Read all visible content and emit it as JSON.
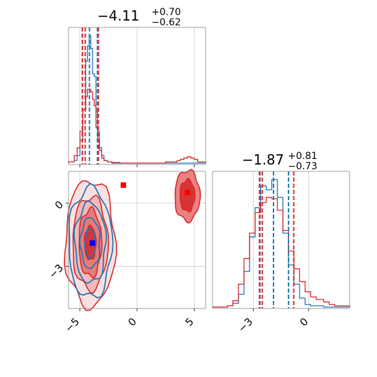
{
  "chart_data": {
    "type": "corner",
    "grid": true,
    "colors": {
      "blue": "#1f77b4",
      "red": "#d62728",
      "blue_marker": "#0000ff",
      "red_marker": "#ff0000",
      "pink_scatter": "#f7b6d2"
    },
    "panels": [
      {
        "id": "hist_param1",
        "kind": "histogram",
        "title": {
          "main": "−4.11",
          "sup": "+0.70",
          "sub": "−0.62"
        },
        "xlim": [
          -6,
          6
        ],
        "x_tick_values": [
          -5,
          0,
          5
        ],
        "quantiles_blue": [
          -4.73,
          -4.11,
          -3.41
        ],
        "quantiles_red": [
          -4.85,
          -4.6,
          -3.45
        ],
        "series": [
          {
            "color": "blue",
            "x": [
              -6.0,
              -5.5,
              -5.25,
              -5.0,
              -4.75,
              -4.5,
              -4.35,
              -4.2,
              -4.05,
              -3.9,
              -3.75,
              -3.6,
              -3.45,
              -3.3,
              -3.1,
              -2.9,
              -2.6,
              -2.2,
              -1.5,
              0,
              2,
              4,
              6
            ],
            "counts": [
              0.01,
              0.02,
              0.06,
              0.18,
              0.42,
              0.8,
              0.92,
              1.0,
              0.9,
              0.7,
              0.68,
              0.4,
              0.25,
              0.12,
              0.06,
              0.02,
              0.01,
              0.005,
              0,
              0,
              0,
              0
            ]
          },
          {
            "color": "red",
            "x": [
              -6.0,
              -5.5,
              -5.25,
              -5.0,
              -4.75,
              -4.5,
              -4.35,
              -4.2,
              -4.05,
              -3.9,
              -3.75,
              -3.6,
              -3.45,
              -3.3,
              -3.1,
              -2.9,
              -2.6,
              -2.2,
              -1.5,
              0,
              2.5,
              3.5,
              3.8,
              4.1,
              4.4,
              4.7,
              5.0,
              5.3,
              5.6,
              6.0
            ],
            "counts": [
              0.01,
              0.06,
              0.12,
              0.25,
              0.42,
              0.52,
              0.58,
              0.58,
              0.56,
              0.5,
              0.45,
              0.28,
              0.18,
              0.1,
              0.04,
              0.02,
              0.01,
              0,
              0,
              0,
              0.01,
              0.02,
              0.03,
              0.04,
              0.05,
              0.04,
              0.03,
              0.01,
              0.01
            ]
          }
        ]
      },
      {
        "id": "hist_param2",
        "kind": "histogram",
        "title": {
          "main": "−1.87",
          "sup": "+0.81",
          "sub": "−0.73"
        },
        "xlim": [
          -5.2,
          2.2
        ],
        "x_tick_values": [
          -3,
          0
        ],
        "quantiles_blue": [
          -2.6,
          -1.87,
          -1.06
        ],
        "quantiles_red": [
          -2.7,
          -2.55,
          -0.85
        ],
        "series": [
          {
            "color": "blue",
            "x": [
              -5.2,
              -4.4,
              -4.1,
              -3.8,
              -3.5,
              -3.2,
              -2.9,
              -2.6,
              -2.3,
              -2.0,
              -1.7,
              -1.4,
              -1.1,
              -0.8,
              -0.5,
              -0.2,
              0.1,
              0.4,
              0.8,
              1.4,
              2.2
            ],
            "counts": [
              0,
              0.01,
              0.03,
              0.1,
              0.28,
              0.55,
              0.78,
              0.95,
              0.92,
              1.0,
              0.86,
              0.58,
              0.33,
              0.18,
              0.07,
              0.02,
              0.01,
              0.01,
              0,
              0
            ]
          },
          {
            "color": "red",
            "x": [
              -5.2,
              -4.4,
              -4.1,
              -3.8,
              -3.5,
              -3.2,
              -2.9,
              -2.6,
              -2.3,
              -2.0,
              -1.7,
              -1.4,
              -1.1,
              -0.8,
              -0.5,
              -0.2,
              0.1,
              0.4,
              0.8,
              1.1,
              1.4,
              2.2
            ],
            "counts": [
              0,
              0.01,
              0.05,
              0.18,
              0.38,
              0.58,
              0.74,
              0.82,
              0.86,
              0.85,
              0.76,
              0.6,
              0.44,
              0.3,
              0.2,
              0.12,
              0.08,
              0.06,
              0.04,
              0.02,
              0.01
            ]
          }
        ]
      },
      {
        "id": "joint",
        "kind": "contour",
        "xlim": [
          -6,
          6
        ],
        "ylim": [
          -5.0,
          1.5
        ],
        "x_tick_values": [
          -5,
          0,
          5
        ],
        "y_tick_values": [
          -3,
          0
        ],
        "x_tick_labels": [
          "−5",
          "0",
          "5"
        ],
        "y_tick_labels": [
          "−3",
          "0"
        ],
        "blue_modes": [
          {
            "cx": -4.1,
            "cy": -1.9,
            "levels": [
              [
                1.9,
                2.6
              ],
              [
                1.35,
                1.9
              ],
              [
                0.85,
                1.2
              ],
              [
                0.45,
                0.7
              ]
            ]
          }
        ],
        "red_modes": [
          {
            "cx": -4.1,
            "cy": -1.9,
            "levels": [
              [
                2.2,
                3.0
              ],
              [
                1.55,
                2.2
              ],
              [
                1.0,
                1.6
              ],
              [
                0.5,
                0.8
              ]
            ]
          },
          {
            "cx": 4.4,
            "cy": 0.35,
            "levels": [
              [
                1.1,
                1.2
              ],
              [
                0.65,
                0.75
              ]
            ]
          }
        ],
        "markers": [
          {
            "color": "blue_marker",
            "x": -3.9,
            "y": -1.9
          },
          {
            "color": "red_marker",
            "x": -1.2,
            "y": 0.85
          },
          {
            "color": "red_marker",
            "x": 4.4,
            "y": 0.5
          }
        ]
      }
    ]
  }
}
